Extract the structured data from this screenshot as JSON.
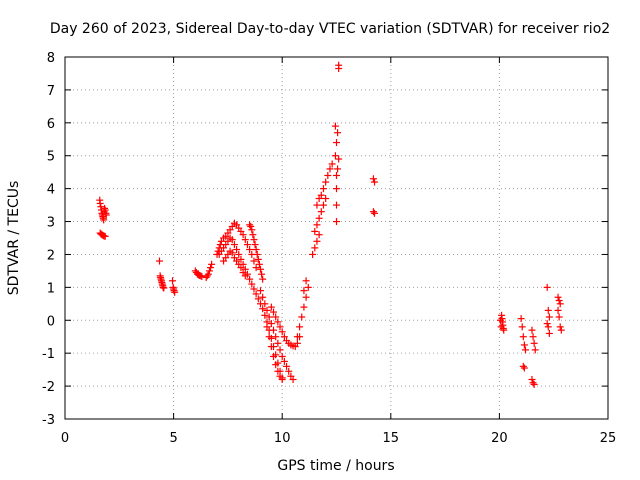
{
  "chart_data": {
    "type": "scatter",
    "title": "Day 260 of 2023, Sidereal Day-to-day VTEC variation (SDTVAR) for receiver rio2",
    "xlabel": "GPS time / hours",
    "ylabel": "SDTVAR / TECUs",
    "xlim": [
      0,
      25
    ],
    "ylim": [
      -3,
      8
    ],
    "xticks": [
      "0",
      "5",
      "10",
      "15",
      "20",
      "25"
    ],
    "yticks": [
      "-3",
      "-2",
      "-1",
      "0",
      "1",
      "2",
      "3",
      "4",
      "5",
      "6",
      "7",
      "8"
    ],
    "grid": true,
    "marker": "+",
    "color": "#ff0000",
    "series": [
      {
        "name": "rio2",
        "points": [
          [
            1.6,
            3.65
          ],
          [
            1.62,
            3.55
          ],
          [
            1.65,
            3.45
          ],
          [
            1.68,
            3.35
          ],
          [
            1.7,
            3.25
          ],
          [
            1.72,
            3.2
          ],
          [
            1.74,
            3.15
          ],
          [
            1.76,
            3.1
          ],
          [
            1.78,
            3.05
          ],
          [
            1.8,
            3.3
          ],
          [
            1.82,
            3.4
          ],
          [
            1.85,
            3.35
          ],
          [
            1.88,
            3.25
          ],
          [
            1.9,
            3.2
          ],
          [
            1.62,
            2.65
          ],
          [
            1.66,
            2.62
          ],
          [
            1.7,
            2.6
          ],
          [
            1.75,
            2.58
          ],
          [
            1.8,
            2.56
          ],
          [
            1.85,
            2.55
          ],
          [
            4.35,
            1.8
          ],
          [
            4.38,
            1.35
          ],
          [
            4.4,
            1.3
          ],
          [
            4.42,
            1.25
          ],
          [
            4.44,
            1.2
          ],
          [
            4.46,
            1.15
          ],
          [
            4.48,
            1.1
          ],
          [
            4.5,
            1.05
          ],
          [
            4.52,
            1.0
          ],
          [
            4.55,
            0.98
          ],
          [
            4.95,
            1.2
          ],
          [
            4.98,
            1.0
          ],
          [
            5.0,
            0.95
          ],
          [
            5.02,
            0.9
          ],
          [
            5.05,
            0.85
          ],
          [
            6.0,
            1.5
          ],
          [
            6.05,
            1.45
          ],
          [
            6.1,
            1.4
          ],
          [
            6.15,
            1.38
          ],
          [
            6.2,
            1.36
          ],
          [
            6.25,
            1.35
          ],
          [
            6.3,
            1.33
          ],
          [
            6.5,
            1.3
          ],
          [
            6.55,
            1.35
          ],
          [
            6.6,
            1.4
          ],
          [
            6.65,
            1.5
          ],
          [
            6.7,
            1.6
          ],
          [
            6.75,
            1.7
          ],
          [
            7.0,
            2.0
          ],
          [
            7.05,
            2.1
          ],
          [
            7.1,
            2.2
          ],
          [
            7.15,
            2.3
          ],
          [
            7.2,
            2.4
          ],
          [
            7.3,
            2.5
          ],
          [
            7.4,
            2.55
          ],
          [
            7.5,
            2.65
          ],
          [
            7.6,
            2.75
          ],
          [
            7.7,
            2.85
          ],
          [
            7.8,
            2.95
          ],
          [
            7.9,
            2.9
          ],
          [
            8.0,
            2.8
          ],
          [
            8.1,
            2.7
          ],
          [
            8.2,
            2.6
          ],
          [
            8.3,
            2.45
          ],
          [
            8.4,
            2.3
          ],
          [
            8.5,
            2.15
          ],
          [
            8.6,
            2.0
          ],
          [
            8.7,
            1.8
          ],
          [
            8.8,
            1.6
          ],
          [
            7.1,
            2.0
          ],
          [
            7.2,
            2.1
          ],
          [
            7.3,
            2.2
          ],
          [
            7.4,
            2.3
          ],
          [
            7.5,
            2.4
          ],
          [
            7.6,
            2.5
          ],
          [
            7.7,
            2.45
          ],
          [
            7.8,
            2.3
          ],
          [
            7.9,
            2.15
          ],
          [
            8.0,
            2.0
          ],
          [
            8.1,
            1.85
          ],
          [
            8.2,
            1.7
          ],
          [
            8.3,
            1.55
          ],
          [
            8.4,
            1.4
          ],
          [
            8.5,
            1.25
          ],
          [
            8.6,
            1.1
          ],
          [
            8.7,
            0.95
          ],
          [
            8.8,
            0.8
          ],
          [
            8.9,
            0.65
          ],
          [
            9.0,
            0.5
          ],
          [
            9.1,
            0.35
          ],
          [
            9.2,
            0.15
          ],
          [
            9.3,
            -0.05
          ],
          [
            9.4,
            -0.3
          ],
          [
            9.5,
            -0.55
          ],
          [
            9.6,
            -0.8
          ],
          [
            9.7,
            -1.05
          ],
          [
            9.8,
            -1.3
          ],
          [
            9.9,
            -1.55
          ],
          [
            10.0,
            -1.75
          ],
          [
            7.3,
            1.8
          ],
          [
            7.4,
            1.9
          ],
          [
            7.5,
            2.0
          ],
          [
            7.6,
            2.1
          ],
          [
            7.7,
            2.05
          ],
          [
            7.8,
            1.9
          ],
          [
            7.9,
            1.8
          ],
          [
            8.0,
            1.7
          ],
          [
            8.1,
            1.6
          ],
          [
            8.2,
            1.45
          ],
          [
            8.3,
            1.35
          ],
          [
            8.5,
            2.9
          ],
          [
            8.55,
            2.85
          ],
          [
            8.6,
            2.75
          ],
          [
            8.65,
            2.6
          ],
          [
            8.7,
            2.45
          ],
          [
            8.75,
            2.3
          ],
          [
            8.8,
            2.15
          ],
          [
            8.85,
            2.0
          ],
          [
            8.9,
            1.85
          ],
          [
            8.95,
            1.7
          ],
          [
            9.0,
            1.55
          ],
          [
            9.05,
            1.4
          ],
          [
            9.1,
            1.25
          ],
          [
            9.0,
            0.9
          ],
          [
            9.1,
            0.7
          ],
          [
            9.2,
            0.5
          ],
          [
            9.3,
            0.3
          ],
          [
            9.4,
            0.1
          ],
          [
            9.5,
            -0.1
          ],
          [
            9.6,
            -0.3
          ],
          [
            9.7,
            -0.5
          ],
          [
            9.8,
            -0.7
          ],
          [
            9.9,
            -0.9
          ],
          [
            10.0,
            -1.1
          ],
          [
            10.1,
            -1.25
          ],
          [
            10.2,
            -1.4
          ],
          [
            10.3,
            -1.55
          ],
          [
            10.4,
            -1.7
          ],
          [
            10.5,
            -1.8
          ],
          [
            9.5,
            0.4
          ],
          [
            9.6,
            0.25
          ],
          [
            9.7,
            0.1
          ],
          [
            9.8,
            -0.05
          ],
          [
            9.9,
            -0.2
          ],
          [
            10.0,
            -0.35
          ],
          [
            10.1,
            -0.5
          ],
          [
            10.2,
            -0.62
          ],
          [
            10.3,
            -0.7
          ],
          [
            10.4,
            -0.75
          ],
          [
            10.5,
            -0.78
          ],
          [
            10.6,
            -0.8
          ],
          [
            10.7,
            -0.7
          ],
          [
            10.8,
            -0.5
          ],
          [
            9.3,
            -0.2
          ],
          [
            9.4,
            -0.5
          ],
          [
            9.5,
            -0.8
          ],
          [
            9.6,
            -1.1
          ],
          [
            9.7,
            -1.35
          ],
          [
            9.8,
            -1.55
          ],
          [
            9.9,
            -1.7
          ],
          [
            10.0,
            -1.8
          ],
          [
            10.7,
            -0.5
          ],
          [
            10.8,
            -0.2
          ],
          [
            10.9,
            0.1
          ],
          [
            11.0,
            0.4
          ],
          [
            11.1,
            0.7
          ],
          [
            11.2,
            1.0
          ],
          [
            11.0,
            0.9
          ],
          [
            11.1,
            1.2
          ],
          [
            11.4,
            2.0
          ],
          [
            11.5,
            2.2
          ],
          [
            11.6,
            2.4
          ],
          [
            11.7,
            2.6
          ],
          [
            11.5,
            2.7
          ],
          [
            11.6,
            2.9
          ],
          [
            11.7,
            3.1
          ],
          [
            11.8,
            3.3
          ],
          [
            11.9,
            3.5
          ],
          [
            12.0,
            3.7
          ],
          [
            11.6,
            3.5
          ],
          [
            11.7,
            3.7
          ],
          [
            11.8,
            3.8
          ],
          [
            11.9,
            4.0
          ],
          [
            12.0,
            4.2
          ],
          [
            12.1,
            4.4
          ],
          [
            12.2,
            4.6
          ],
          [
            12.3,
            4.75
          ],
          [
            12.5,
            3.0
          ],
          [
            12.5,
            3.5
          ],
          [
            12.5,
            4.0
          ],
          [
            12.5,
            4.4
          ],
          [
            12.45,
            5.0
          ],
          [
            12.5,
            5.4
          ],
          [
            12.55,
            5.7
          ],
          [
            12.45,
            5.9
          ],
          [
            12.6,
            4.9
          ],
          [
            12.55,
            4.6
          ],
          [
            12.6,
            7.65
          ],
          [
            12.6,
            7.75
          ],
          [
            14.2,
            4.3
          ],
          [
            14.25,
            4.2
          ],
          [
            14.2,
            3.3
          ],
          [
            14.25,
            3.25
          ],
          [
            20.1,
            0.15
          ],
          [
            20.12,
            0.05
          ],
          [
            20.14,
            -0.05
          ],
          [
            20.16,
            -0.15
          ],
          [
            20.18,
            -0.25
          ],
          [
            20.2,
            -0.3
          ],
          [
            20.05,
            0.0
          ],
          [
            20.08,
            -0.2
          ],
          [
            21.0,
            0.05
          ],
          [
            21.05,
            -0.2
          ],
          [
            21.1,
            -0.5
          ],
          [
            21.15,
            -0.75
          ],
          [
            21.2,
            -0.9
          ],
          [
            21.1,
            -1.4
          ],
          [
            21.15,
            -1.45
          ],
          [
            21.5,
            -0.3
          ],
          [
            21.55,
            -0.5
          ],
          [
            21.6,
            -0.7
          ],
          [
            21.65,
            -0.9
          ],
          [
            21.5,
            -1.8
          ],
          [
            21.55,
            -1.9
          ],
          [
            21.6,
            -1.95
          ],
          [
            22.2,
            1.0
          ],
          [
            22.25,
            0.3
          ],
          [
            22.3,
            0.1
          ],
          [
            22.2,
            -0.1
          ],
          [
            22.25,
            -0.2
          ],
          [
            22.3,
            -0.4
          ],
          [
            22.7,
            0.7
          ],
          [
            22.75,
            0.6
          ],
          [
            22.8,
            0.5
          ],
          [
            22.7,
            0.3
          ],
          [
            22.75,
            0.1
          ],
          [
            22.8,
            -0.2
          ],
          [
            22.85,
            -0.3
          ]
        ]
      }
    ]
  }
}
